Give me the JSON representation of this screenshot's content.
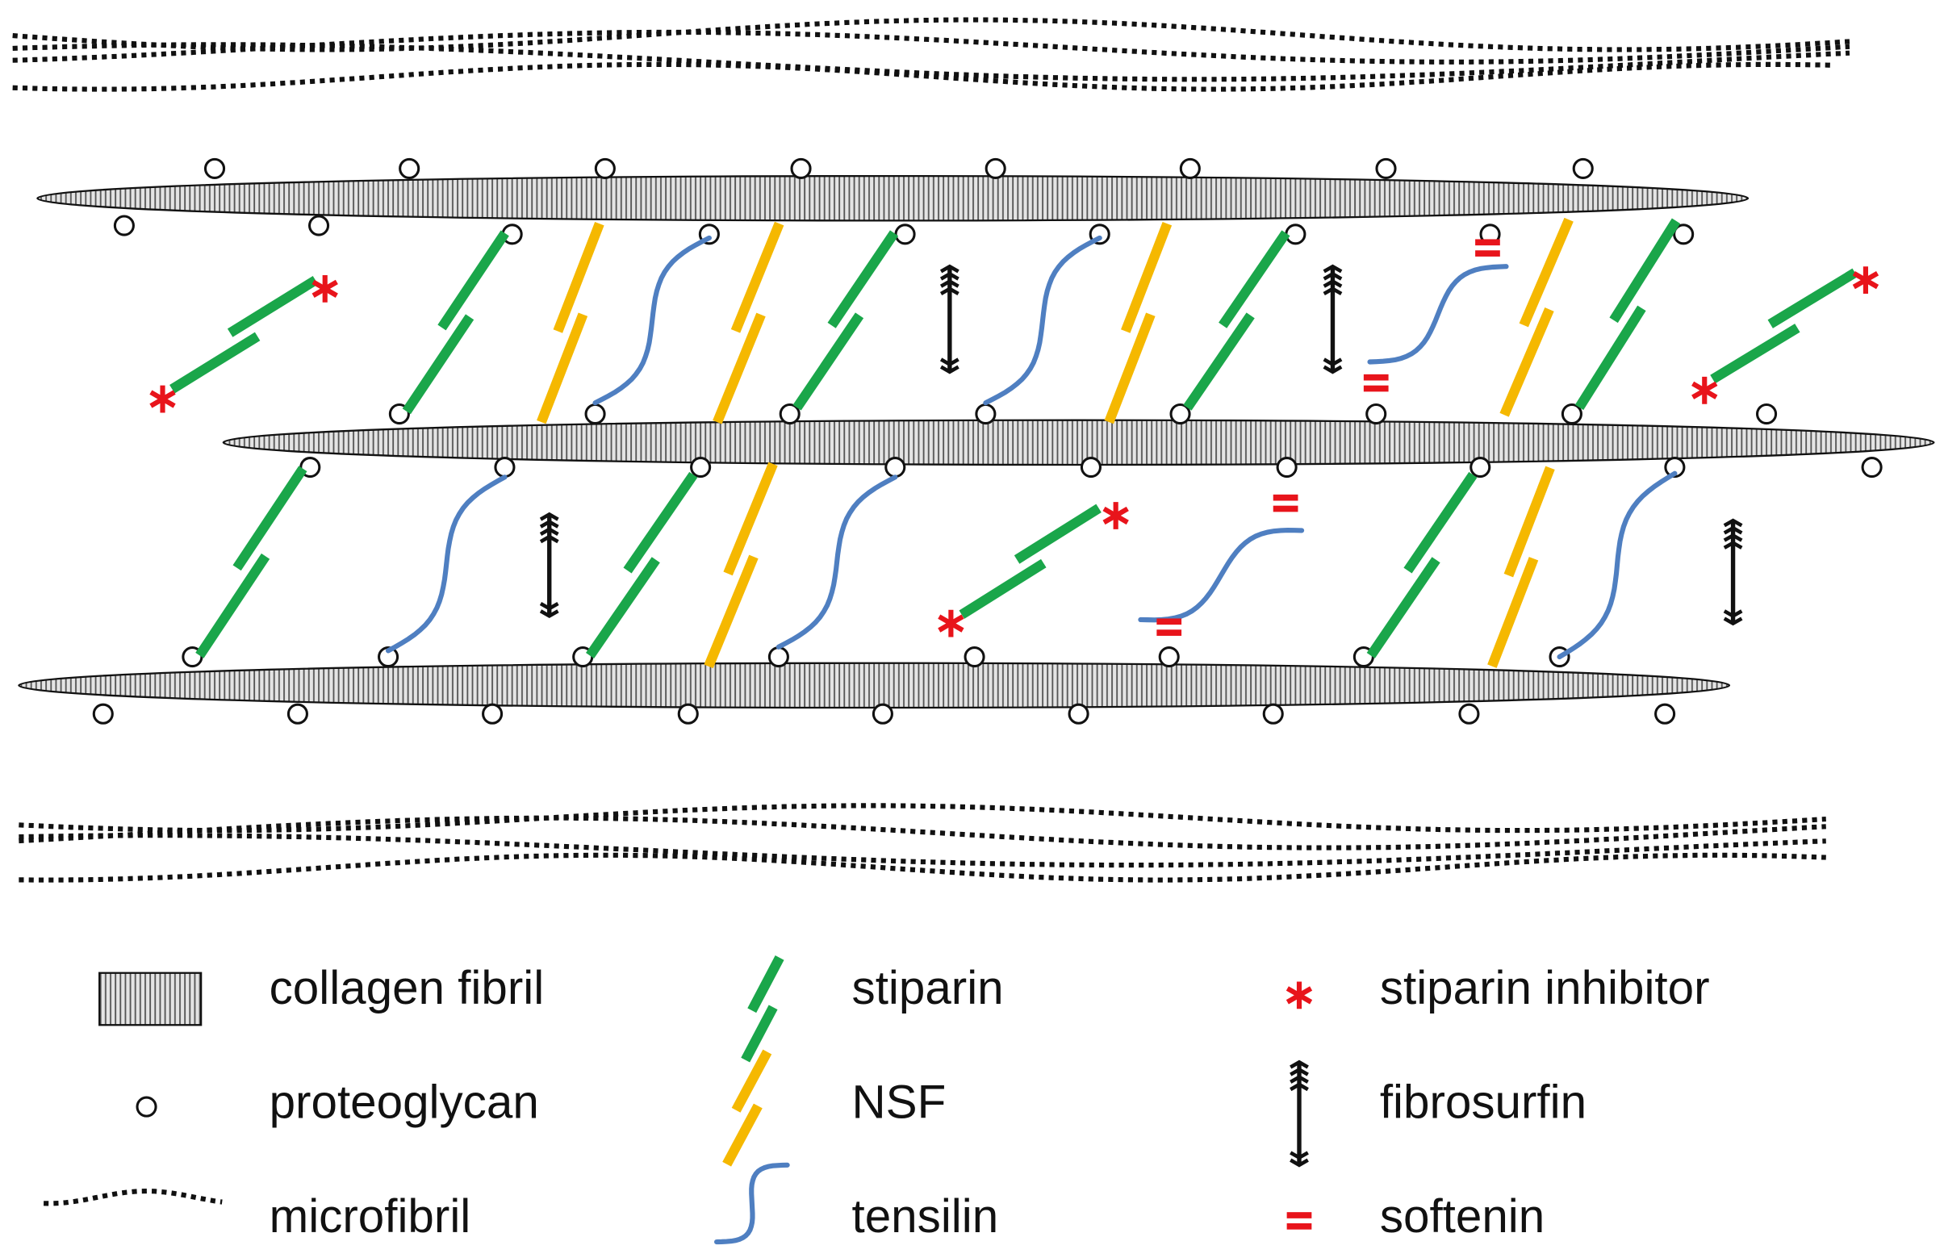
{
  "legend": [
    {
      "label": "collagen fibril"
    },
    {
      "label": "proteoglycan"
    },
    {
      "label": "microfibril"
    },
    {
      "label": "stiparin"
    },
    {
      "label": "NSF"
    },
    {
      "label": "tensilin"
    },
    {
      "label": "stiparin inhibitor"
    },
    {
      "label": "fibrosurfin"
    },
    {
      "label": "softenin"
    }
  ]
}
